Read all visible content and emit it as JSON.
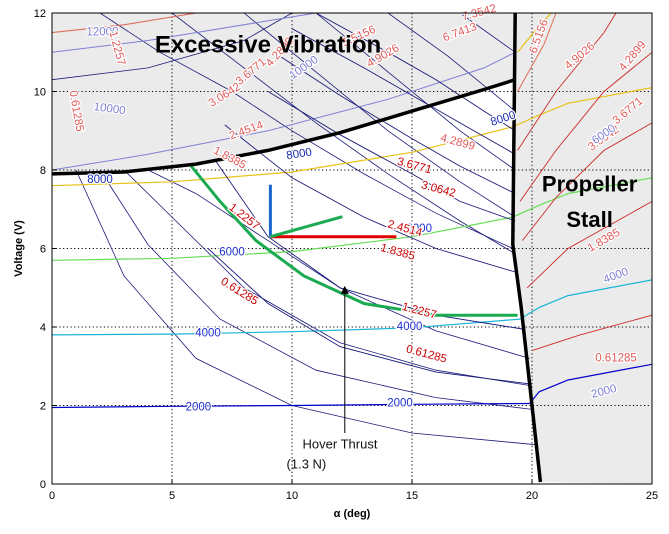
{
  "chart_data": {
    "type": "contour",
    "xlabel": "α (deg)",
    "ylabel": "Voltage (V)",
    "xlim": [
      0,
      25
    ],
    "ylim": [
      0,
      12
    ],
    "x_ticks": [
      "0",
      "5",
      "10",
      "15",
      "20",
      "25"
    ],
    "y_ticks": [
      "0",
      "2",
      "4",
      "6",
      "8",
      "10",
      "12"
    ],
    "grid": true,
    "regions": {
      "vibration": {
        "label": "Excessive Vibration"
      },
      "stall": {
        "label_line1": "Propeller",
        "label_line2": "Stall"
      }
    },
    "boundaries": {
      "vibration": [
        [
          0,
          7.9
        ],
        [
          3,
          7.95
        ],
        [
          6,
          8.15
        ],
        [
          9,
          8.5
        ],
        [
          12,
          8.95
        ],
        [
          15,
          9.5
        ],
        [
          18,
          10.05
        ],
        [
          19.3,
          10.3
        ]
      ],
      "stall": [
        [
          19.3,
          12
        ],
        [
          19.2,
          6.1
        ],
        [
          19.55,
          4.5
        ],
        [
          20.0,
          2.0
        ],
        [
          20.35,
          0.05
        ]
      ]
    },
    "rpm_contours": [
      {
        "label": "2000",
        "color": "#0000cc",
        "points": [
          [
            0,
            1.95
          ],
          [
            5,
            1.98
          ],
          [
            10,
            2.0
          ],
          [
            15,
            2.03
          ],
          [
            19.9,
            2.05
          ]
        ],
        "label_positions": [
          [
            6.1,
            1.95
          ],
          [
            14.5,
            2.05
          ]
        ]
      },
      {
        "label": "4000",
        "color": "#19b5d8",
        "points": [
          [
            0,
            3.8
          ],
          [
            5,
            3.82
          ],
          [
            10,
            3.88
          ],
          [
            15,
            3.98
          ],
          [
            19.5,
            4.2
          ]
        ],
        "label_positions": [
          [
            6.5,
            3.83
          ],
          [
            14.9,
            4.0
          ]
        ]
      },
      {
        "label": "6000",
        "color": "#66dd55",
        "points": [
          [
            0,
            5.7
          ],
          [
            5,
            5.75
          ],
          [
            10,
            5.92
          ],
          [
            15,
            6.3
          ],
          [
            19.2,
            6.8
          ]
        ],
        "label_positions": [
          [
            7.5,
            5.9
          ],
          [
            15.3,
            6.5
          ]
        ]
      },
      {
        "label": "8000",
        "color": "#e8c21a",
        "points": [
          [
            0,
            7.6
          ],
          [
            5,
            7.7
          ],
          [
            10,
            7.95
          ],
          [
            15,
            8.45
          ],
          [
            19.2,
            9.1
          ]
        ],
        "label_positions": [
          [
            2.0,
            7.75
          ]
        ]
      }
    ],
    "rpm_lines_upper": [
      {
        "label": "8000",
        "points": [
          [
            9.5,
            8.4
          ],
          [
            11,
            8.2
          ]
        ]
      }
    ],
    "thrust_contours": [
      {
        "label": "0.61285",
        "color": "#cc0000",
        "points": [
          [
            6.5,
            6.0
          ],
          [
            9,
            4.6
          ],
          [
            12,
            3.5
          ],
          [
            16,
            2.85
          ],
          [
            19.9,
            2.55
          ]
        ],
        "label_positions": [
          [
            7.8,
            4.9
          ],
          [
            15.6,
            3.3
          ]
        ]
      },
      {
        "label": "1.2257",
        "color": "#cc0000",
        "points": [
          [
            6.8,
            8.25
          ],
          [
            9,
            6.3
          ],
          [
            12,
            5.0
          ],
          [
            16,
            4.3
          ],
          [
            19.6,
            3.95
          ]
        ],
        "label_positions": [
          [
            8.0,
            6.8
          ],
          [
            15.3,
            4.4
          ]
        ]
      },
      {
        "label": "1.8385",
        "color": "#cc0000",
        "points": [
          [
            7.2,
            9.15
          ],
          [
            10,
            7.8
          ],
          [
            13,
            6.8
          ],
          [
            16,
            6.0
          ],
          [
            19.3,
            5.4
          ]
        ],
        "label_positions": [
          [
            7.4,
            8.3
          ],
          [
            14.4,
            5.9
          ]
        ]
      },
      {
        "label": "2.4514",
        "color": "#cc0000",
        "points": [
          [
            9.0,
            10.0
          ],
          [
            12,
            8.9
          ],
          [
            15,
            7.9
          ],
          [
            17,
            7.2
          ],
          [
            19.3,
            6.7
          ]
        ],
        "label_positions": [
          [
            8.1,
            9.0
          ],
          [
            14.7,
            6.5
          ]
        ]
      },
      {
        "label": "3.0642",
        "color": "#cc0000",
        "points": [
          [
            9.5,
            10.9
          ],
          [
            12,
            9.9
          ],
          [
            15,
            8.8
          ],
          [
            17,
            8.1
          ],
          [
            19.3,
            7.4
          ]
        ],
        "label_positions": [
          [
            7.2,
            9.9
          ],
          [
            16.1,
            7.5
          ]
        ]
      },
      {
        "label": "3.6771",
        "color": "#cc0000",
        "points": [
          [
            10,
            11.6
          ],
          [
            13,
            10.6
          ],
          [
            15,
            9.9
          ],
          [
            17,
            9.2
          ],
          [
            19.3,
            8.4
          ]
        ],
        "label_positions": [
          [
            8.3,
            10.5
          ],
          [
            15.1,
            8.1
          ]
        ]
      },
      {
        "label": "4.2899",
        "color": "#cc0000",
        "points": [
          [
            11,
            12
          ],
          [
            14,
            11.0
          ],
          [
            16,
            10.3
          ],
          [
            18,
            9.5
          ],
          [
            19.3,
            9.0
          ]
        ],
        "label_positions": [
          [
            9.5,
            11.0
          ],
          [
            16.9,
            8.7
          ]
        ]
      }
    ],
    "upper_thrust_labels": [
      "4.9026",
      "5.5156",
      "6.7413",
      "7.3542"
    ],
    "upper_rpm_labels": [
      "10000",
      "12000"
    ],
    "stall_side_labels": [
      "4.9026",
      "4.2899",
      "3.6771",
      "3.0642",
      "1.8385",
      "0.61285",
      "6000",
      "4000",
      "2000",
      "6.5156"
    ],
    "operating_point": {
      "alpha": 9.1,
      "voltage": 6.3
    },
    "hover_thrust_curve": {
      "color": "#1aaa50",
      "points": [
        [
          5.8,
          8.1
        ],
        [
          7.0,
          7.2
        ],
        [
          8.5,
          6.2
        ],
        [
          10.5,
          5.3
        ],
        [
          13,
          4.6
        ],
        [
          16,
          4.3
        ],
        [
          19.4,
          4.3
        ]
      ],
      "label_line1": "Hover Thrust",
      "label_line2": "(1.3 N)",
      "arrow_target": [
        12.2,
        5.1
      ]
    },
    "axes_marks": {
      "blue_color": "#1a66cc",
      "red_color": "#e00000",
      "green_color": "#1aaa50"
    }
  }
}
